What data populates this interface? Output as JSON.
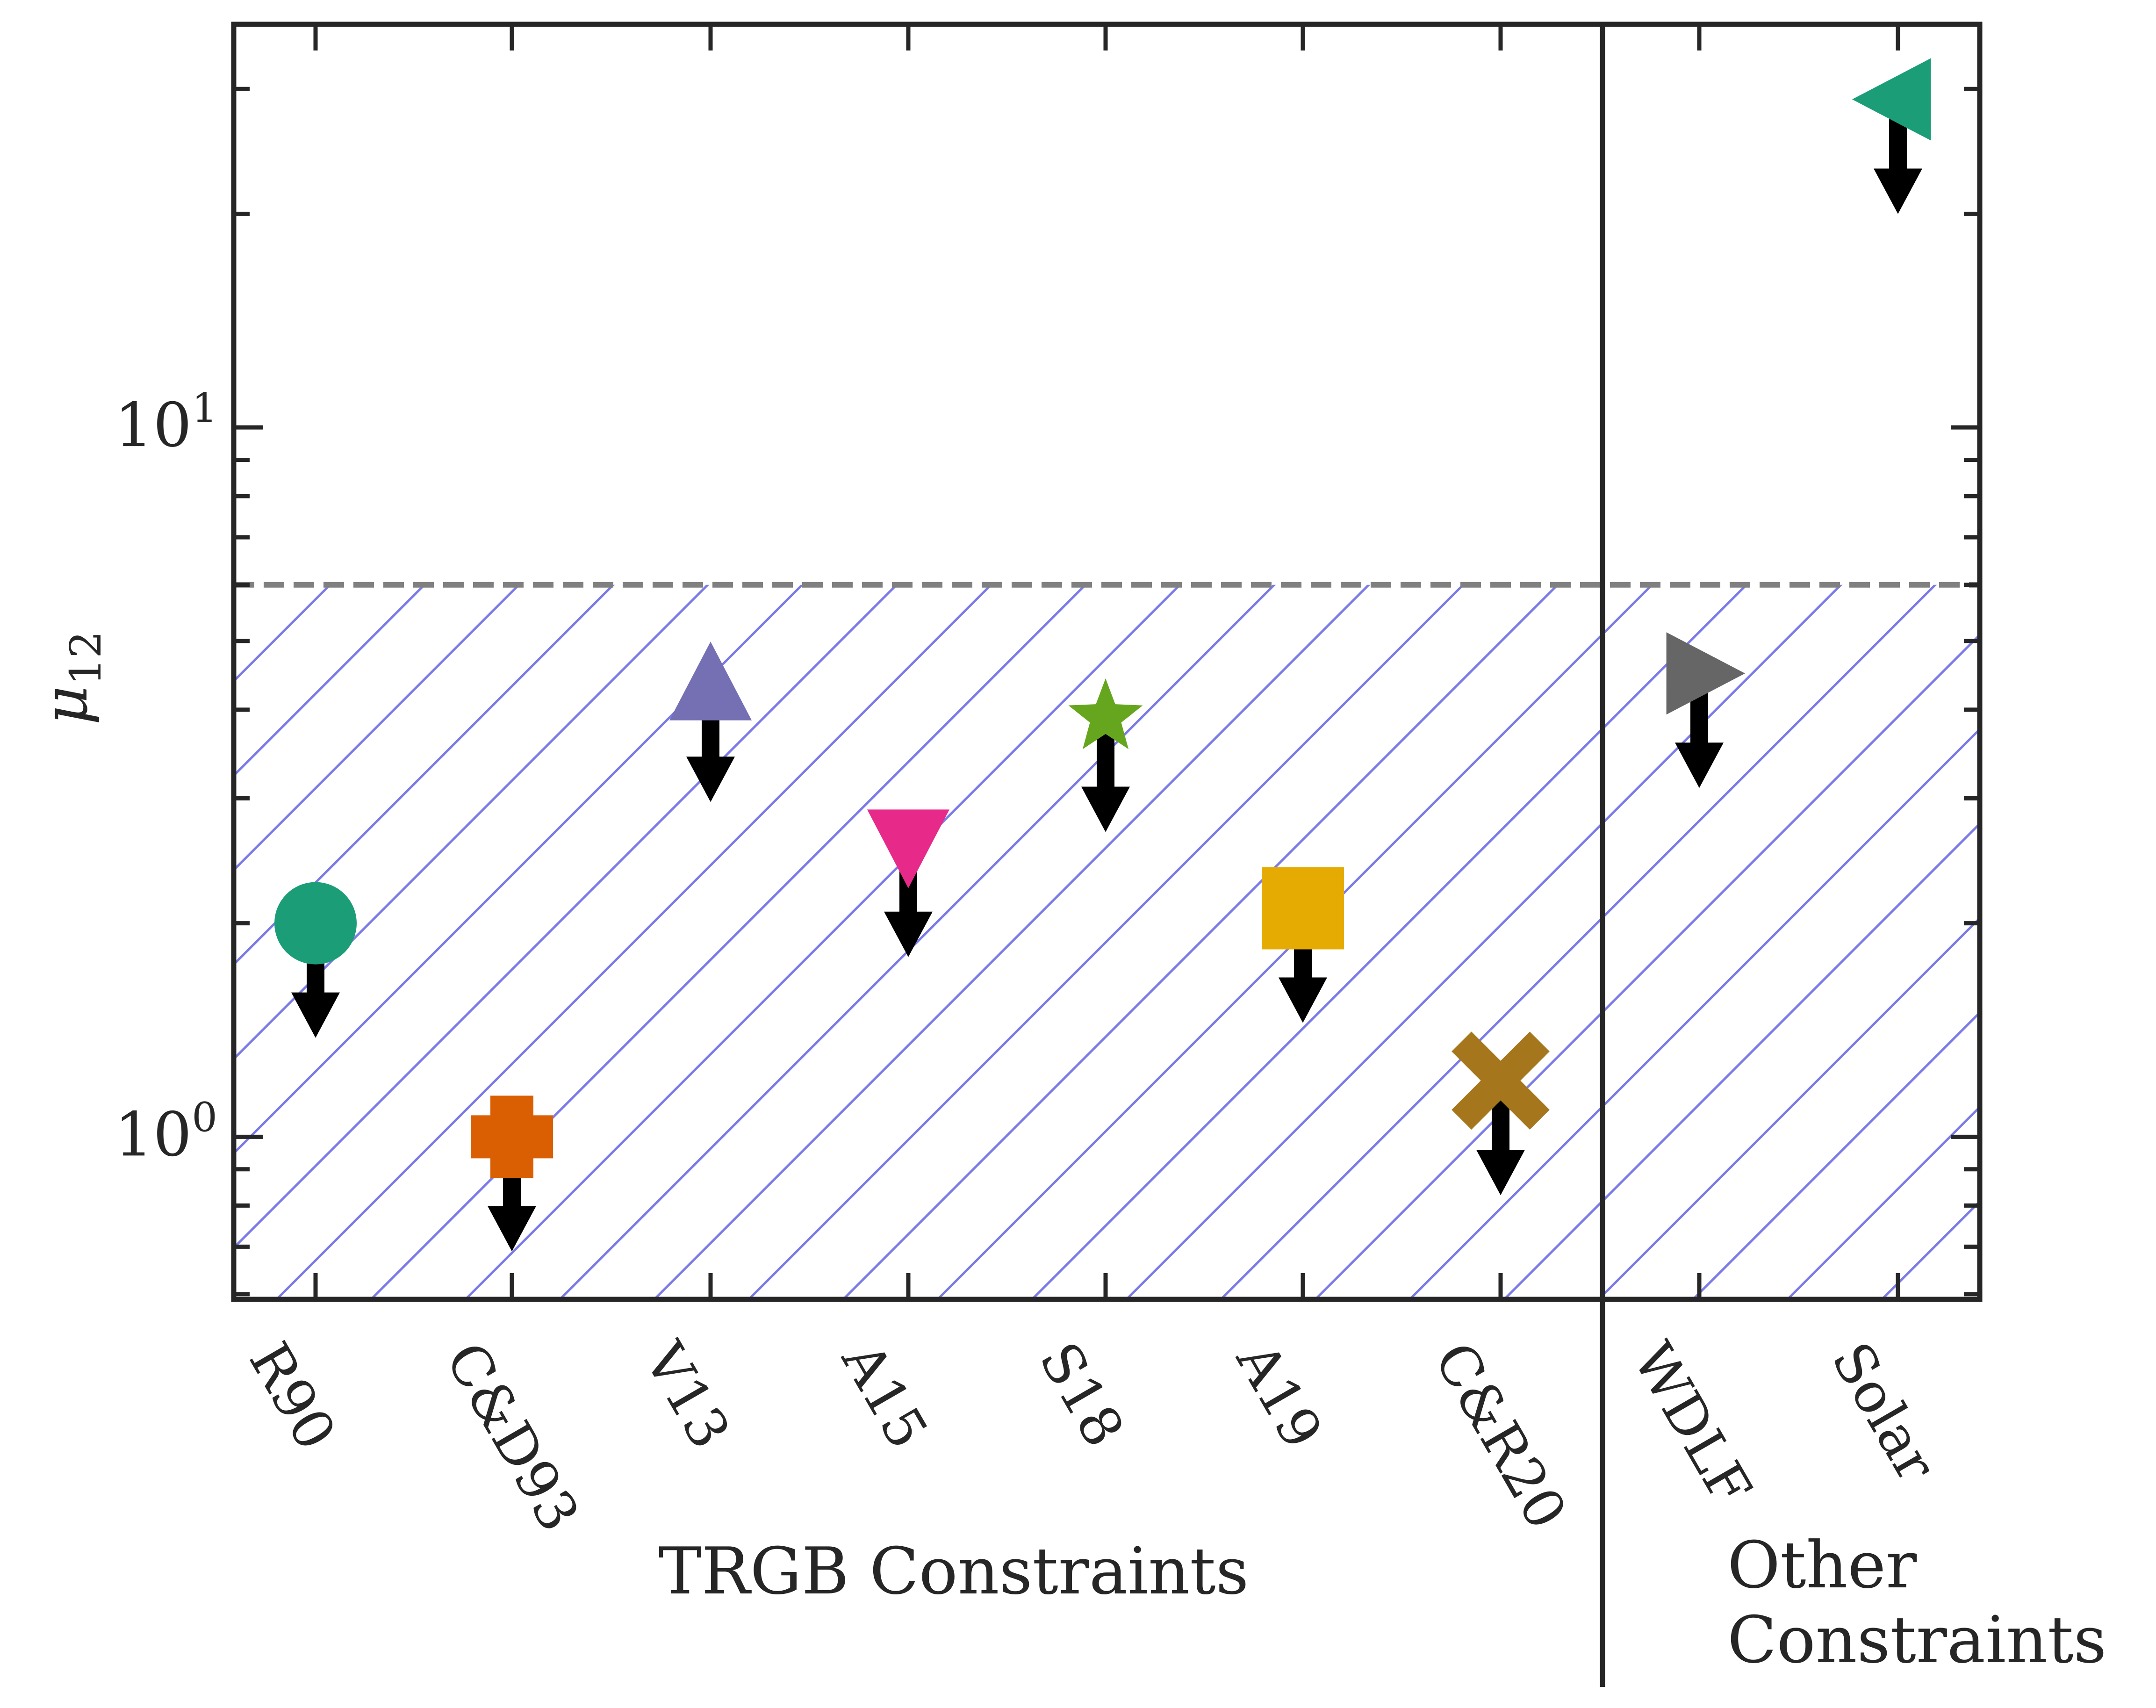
{
  "chart_data": {
    "type": "scatter",
    "title": "",
    "ylabel": "μ",
    "ylabel_subscript": "12",
    "yscale": "log",
    "ylim": [
      0.59,
      37
    ],
    "yticks": [
      {
        "value": 1,
        "base": "10",
        "exp": "0"
      },
      {
        "value": 10,
        "base": "10",
        "exp": "1"
      }
    ],
    "categories": [
      "R90",
      "C&D93",
      "V13",
      "A15",
      "S18",
      "A19",
      "C&R20",
      "WDLF",
      "Solar"
    ],
    "groups": [
      {
        "label": "TRGB Constraints",
        "categories": [
          "R90",
          "C&D93",
          "V13",
          "A15",
          "S18",
          "A19",
          "C&R20"
        ]
      },
      {
        "label_lines": [
          "Other",
          "Constraints"
        ],
        "categories": [
          "WDLF",
          "Solar"
        ]
      }
    ],
    "threshold": {
      "value": 6.0,
      "style": "dashed",
      "color": "#808080",
      "region": "below",
      "hatch_color": "#7b7be6"
    },
    "upper_limits": true,
    "points": [
      {
        "category": "R90",
        "value": 2.0,
        "marker": "circle",
        "color": "#1b9e77"
      },
      {
        "category": "C&D93",
        "value": 1.0,
        "marker": "plus",
        "color": "#d95f02"
      },
      {
        "category": "V13",
        "value": 4.3,
        "marker": "triangle-up",
        "color": "#7570b3"
      },
      {
        "category": "A15",
        "value": 2.6,
        "marker": "triangle-down",
        "color": "#e7298a"
      },
      {
        "category": "S18",
        "value": 3.9,
        "marker": "star",
        "color": "#66a61e"
      },
      {
        "category": "A19",
        "value": 2.1,
        "marker": "square",
        "color": "#e6ab02"
      },
      {
        "category": "C&R20",
        "value": 1.2,
        "marker": "x",
        "color": "#a6761d"
      },
      {
        "category": "WDLF",
        "value": 4.5,
        "marker": "triangle-right",
        "color": "#666666"
      },
      {
        "category": "Solar",
        "value": 29,
        "marker": "triangle-left",
        "color": "#1b9e77"
      }
    ],
    "grid": false,
    "legend": "none"
  }
}
